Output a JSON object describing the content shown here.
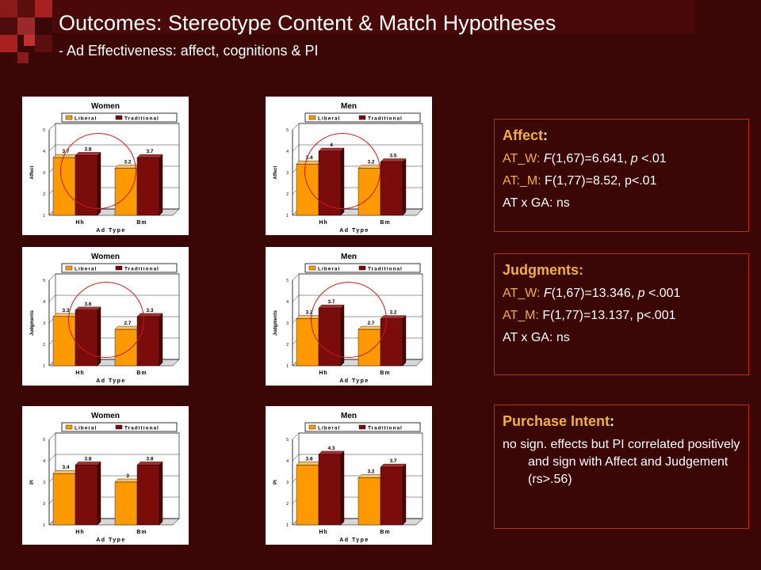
{
  "header": {
    "title": "Outcomes: Stereotype Content & Match Hypotheses",
    "subtitle": "- Ad Effectiveness: affect, cognitions & PI"
  },
  "colors": {
    "background": "#3a0606",
    "liberal": "#ff9900",
    "traditional": "#7a0c0c",
    "accent_text": "#f0b040",
    "box_border": "#b8321a",
    "ring": "#cc1a1a"
  },
  "chart_data": [
    {
      "type": "bar",
      "title": "Women",
      "xlabel": "Ad Type",
      "ylabel": "Affect",
      "categories": [
        "Hh",
        "Bm"
      ],
      "ylim": [
        1,
        5
      ],
      "yticks": [
        "1",
        "2",
        "3",
        "4",
        "5"
      ],
      "grid": true,
      "legend": "top-left",
      "series": [
        {
          "name": "Liberal",
          "values": [
            3.7,
            3.2
          ],
          "labels": [
            "3.7",
            "3.2"
          ]
        },
        {
          "name": "Traditional",
          "values": [
            3.8,
            3.7
          ],
          "labels": [
            "3.8",
            "3.7"
          ]
        }
      ]
    },
    {
      "type": "bar",
      "title": "Men",
      "xlabel": "Ad Type",
      "ylabel": "Affect",
      "categories": [
        "Hh",
        "Bm"
      ],
      "ylim": [
        1,
        5
      ],
      "yticks": [
        "1",
        "2",
        "3",
        "4",
        "5"
      ],
      "grid": true,
      "legend": "top-left",
      "series": [
        {
          "name": "Liberal",
          "values": [
            3.4,
            3.2
          ],
          "labels": [
            "3.4",
            "3.2"
          ]
        },
        {
          "name": "Traditional",
          "values": [
            4.0,
            3.5
          ],
          "labels": [
            "4",
            "3.5"
          ]
        }
      ]
    },
    {
      "type": "bar",
      "title": "Women",
      "xlabel": "Ad Type",
      "ylabel": "Judgments",
      "categories": [
        "Hh",
        "Bm"
      ],
      "ylim": [
        1,
        5
      ],
      "yticks": [
        "1",
        "2",
        "3",
        "4",
        "5"
      ],
      "grid": true,
      "legend": "top-left",
      "series": [
        {
          "name": "Liberal",
          "values": [
            3.3,
            2.7
          ],
          "labels": [
            "3.3",
            "2.7"
          ]
        },
        {
          "name": "Traditional",
          "values": [
            3.6,
            3.3
          ],
          "labels": [
            "3.6",
            "3.3"
          ]
        }
      ]
    },
    {
      "type": "bar",
      "title": "Men",
      "xlabel": "Ad Type",
      "ylabel": "Judgments",
      "categories": [
        "Hh",
        "Bm"
      ],
      "ylim": [
        1,
        5
      ],
      "yticks": [
        "1",
        "2",
        "3",
        "4",
        "5"
      ],
      "grid": true,
      "legend": "top-left",
      "series": [
        {
          "name": "Liberal",
          "values": [
            3.2,
            2.7
          ],
          "labels": [
            "3.2",
            "2.7"
          ]
        },
        {
          "name": "Traditional",
          "values": [
            3.7,
            3.2
          ],
          "labels": [
            "3.7",
            "3.2"
          ]
        }
      ]
    },
    {
      "type": "bar",
      "title": "Women",
      "xlabel": "Ad Type",
      "ylabel": "PI",
      "categories": [
        "Hh",
        "Bm"
      ],
      "ylim": [
        1,
        5
      ],
      "yticks": [
        "1",
        "2",
        "3",
        "4",
        "5"
      ],
      "grid": true,
      "legend": "top-left",
      "series": [
        {
          "name": "Liberal",
          "values": [
            3.4,
            3.0
          ],
          "labels": [
            "3.4",
            "3"
          ]
        },
        {
          "name": "Traditional",
          "values": [
            3.8,
            3.8
          ],
          "labels": [
            "3.8",
            "3.8"
          ]
        }
      ]
    },
    {
      "type": "bar",
      "title": "Men",
      "xlabel": "Ad Type",
      "ylabel": "PI",
      "categories": [
        "Hh",
        "Bm"
      ],
      "ylim": [
        1,
        5
      ],
      "yticks": [
        "1",
        "2",
        "3",
        "4",
        "5"
      ],
      "grid": true,
      "legend": "top-left",
      "series": [
        {
          "name": "Liberal",
          "values": [
            3.8,
            3.2
          ],
          "labels": [
            "3.8",
            "3.2"
          ]
        },
        {
          "name": "Traditional",
          "values": [
            4.3,
            3.7
          ],
          "labels": [
            "4.3",
            "3.7"
          ]
        }
      ]
    }
  ],
  "affect_box": {
    "heading": "Affect",
    "colon": ":",
    "line1": {
      "label": "AT_W: ",
      "f": "F",
      "stats": "(1,67)=6.641, ",
      "p": "p",
      "tail": " <.01"
    },
    "line2": {
      "label": "AT:_M: ",
      "text": "F(1,77)=8.52, p<.01"
    },
    "line3": "AT x GA: ns"
  },
  "judgments_box": {
    "heading": "Judgments:",
    "line1": {
      "label": "AT_W: ",
      "f": "F",
      "stats": "(1,67)=13.346, ",
      "p": "p",
      "tail": " <.001"
    },
    "line2": {
      "label": "AT_M: ",
      "text": "F(1,77)=13.137, p<.001"
    },
    "line3": "AT x GA: ns"
  },
  "purchase_box": {
    "heading": "Purchase Intent",
    "colon": ":",
    "text": "no sign. effects but  PI correlated positively and sign with Affect and Judgement  (rs>.56)"
  }
}
